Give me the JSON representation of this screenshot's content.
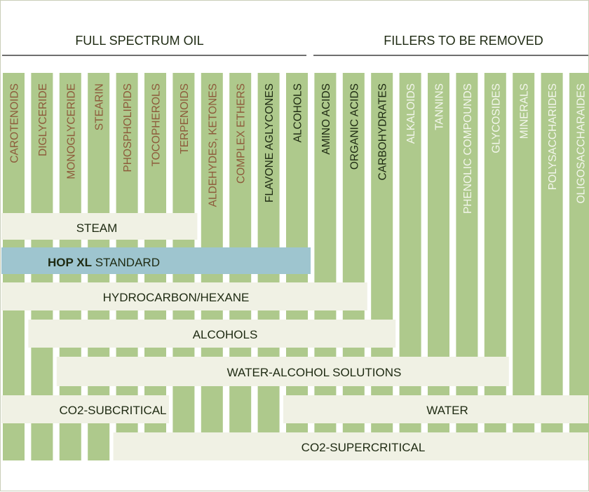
{
  "headers": {
    "left": "FULL SPECTRUM OIL",
    "right": "FILLERS TO BE REMOVED"
  },
  "colors": {
    "column": "#aec98c",
    "band": "#f0f1e4",
    "highlight": "#9ec5cf",
    "text_brown": "#8d5b3b",
    "text_dark": "#1e2a12",
    "text_light": "#f3f6ec",
    "rule": "#6f6f6f"
  },
  "columns": [
    {
      "label": "CAROTENOIDS",
      "tone": "brown"
    },
    {
      "label": "DIGLYCERIDE",
      "tone": "brown"
    },
    {
      "label": "MONOGLYCERIDE",
      "tone": "brown"
    },
    {
      "label": "STEARIN",
      "tone": "brown"
    },
    {
      "label": "PHOSPHOLIPIDS",
      "tone": "brown"
    },
    {
      "label": "TOCOPHEROLS",
      "tone": "brown"
    },
    {
      "label": "TERPENOIDS",
      "tone": "brown"
    },
    {
      "label": "ALDEHYDES, KETONES",
      "tone": "brown"
    },
    {
      "label": "COMPLEX ETHERS",
      "tone": "brown"
    },
    {
      "label": "FLAVONE AGLYCONES",
      "tone": "dark"
    },
    {
      "label": "ALCOHOLS",
      "tone": "dark"
    },
    {
      "label": "AMINO ACIDS",
      "tone": "dark"
    },
    {
      "label": "ORGANIC ACIDS",
      "tone": "dark"
    },
    {
      "label": "CARBOHYDRATES",
      "tone": "dark"
    },
    {
      "label": "ALKALOIDS",
      "tone": "light"
    },
    {
      "label": "TANNINS",
      "tone": "light"
    },
    {
      "label": "PHENOLIC COMPOUNDS",
      "tone": "light"
    },
    {
      "label": "GLYCOSIDES",
      "tone": "light"
    },
    {
      "label": "MINERALS",
      "tone": "light"
    },
    {
      "label": "POLYSACCHARIDES",
      "tone": "light"
    },
    {
      "label": "OLIGOSACCHARAIDES",
      "tone": "light"
    }
  ],
  "methods": [
    {
      "name": "STEAM",
      "from": 0,
      "to": 6
    },
    {
      "name_bold": "HOP XL",
      "name": " STANDARD",
      "from": 0,
      "to": 10,
      "highlight": true
    },
    {
      "name": "HYDROCARBON/HEXANE",
      "from": 0,
      "to": 12
    },
    {
      "name": "ALCOHOLS",
      "from": 1,
      "to": 13
    },
    {
      "name": "WATER-ALCOHOL SOLUTIONS",
      "from": 2,
      "to": 17
    },
    {
      "name": "CO2-SUBCRITICAL",
      "from": 0,
      "to": 5,
      "shared_row": true
    },
    {
      "name": "WATER",
      "from": 10,
      "to": 20,
      "shared_row": true
    },
    {
      "name": "CO2-SUPERCRITICAL",
      "from": 4,
      "to": 20
    }
  ]
}
